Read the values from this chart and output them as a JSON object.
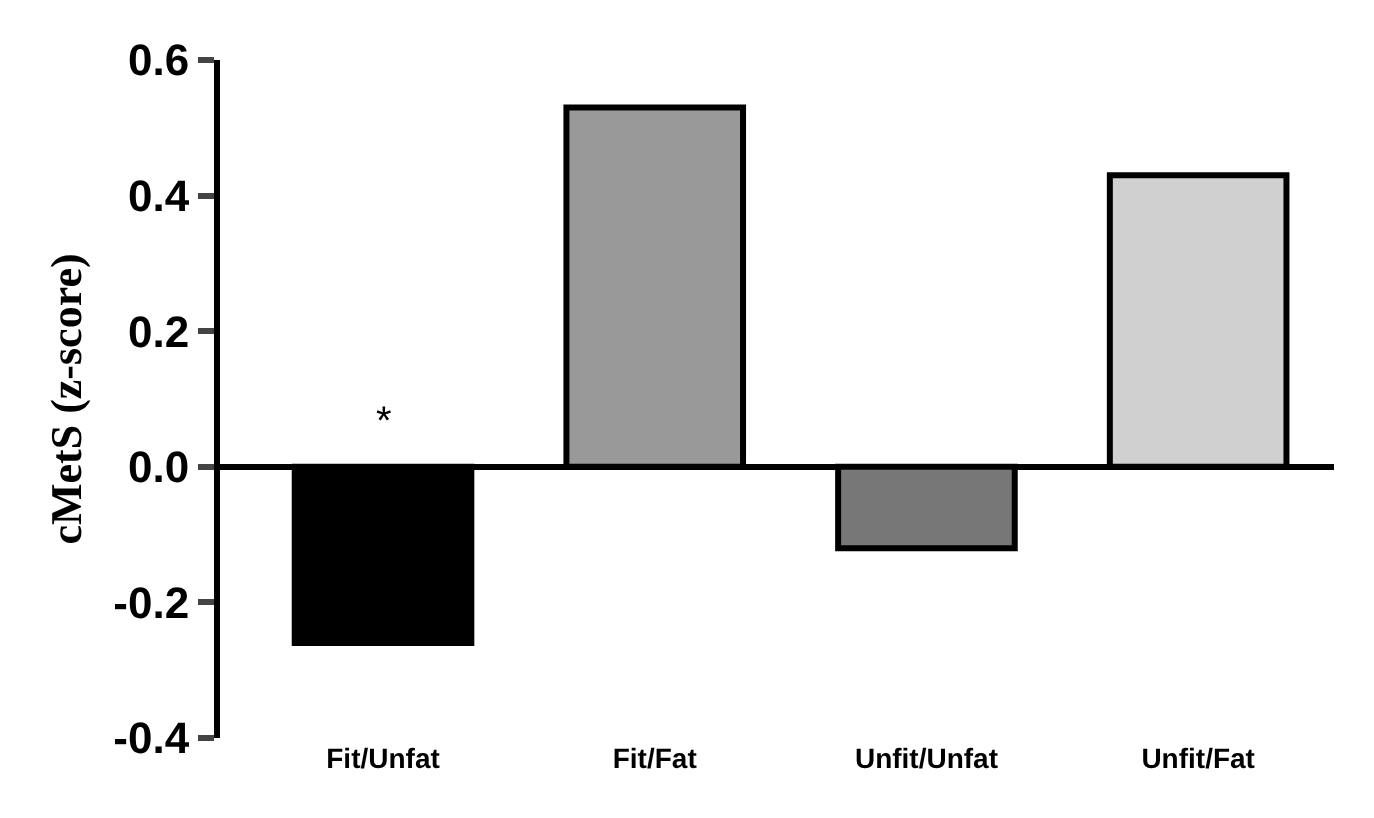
{
  "chart_data": {
    "type": "bar",
    "ylabel": "cMetS (z-score)",
    "categories": [
      "Fit/Unfat",
      "Fit/Fat",
      "Unfit/Unfat",
      "Unfit/Fat"
    ],
    "values": [
      -0.26,
      0.53,
      -0.12,
      0.43
    ],
    "colors": [
      "#000000",
      "#999999",
      "#777777",
      "#d0d0d0"
    ],
    "ylim": [
      -0.4,
      0.6
    ],
    "yticks": [
      {
        "value": -0.4,
        "label": "-0.4"
      },
      {
        "value": -0.2,
        "label": "-0.2"
      },
      {
        "value": 0,
        "label": "0.0"
      },
      {
        "value": 0.2,
        "label": "0.2"
      },
      {
        "value": 0.4,
        "label": "0.4"
      },
      {
        "value": 0.6,
        "label": "0.6"
      }
    ],
    "annotations": [
      "*"
    ]
  }
}
